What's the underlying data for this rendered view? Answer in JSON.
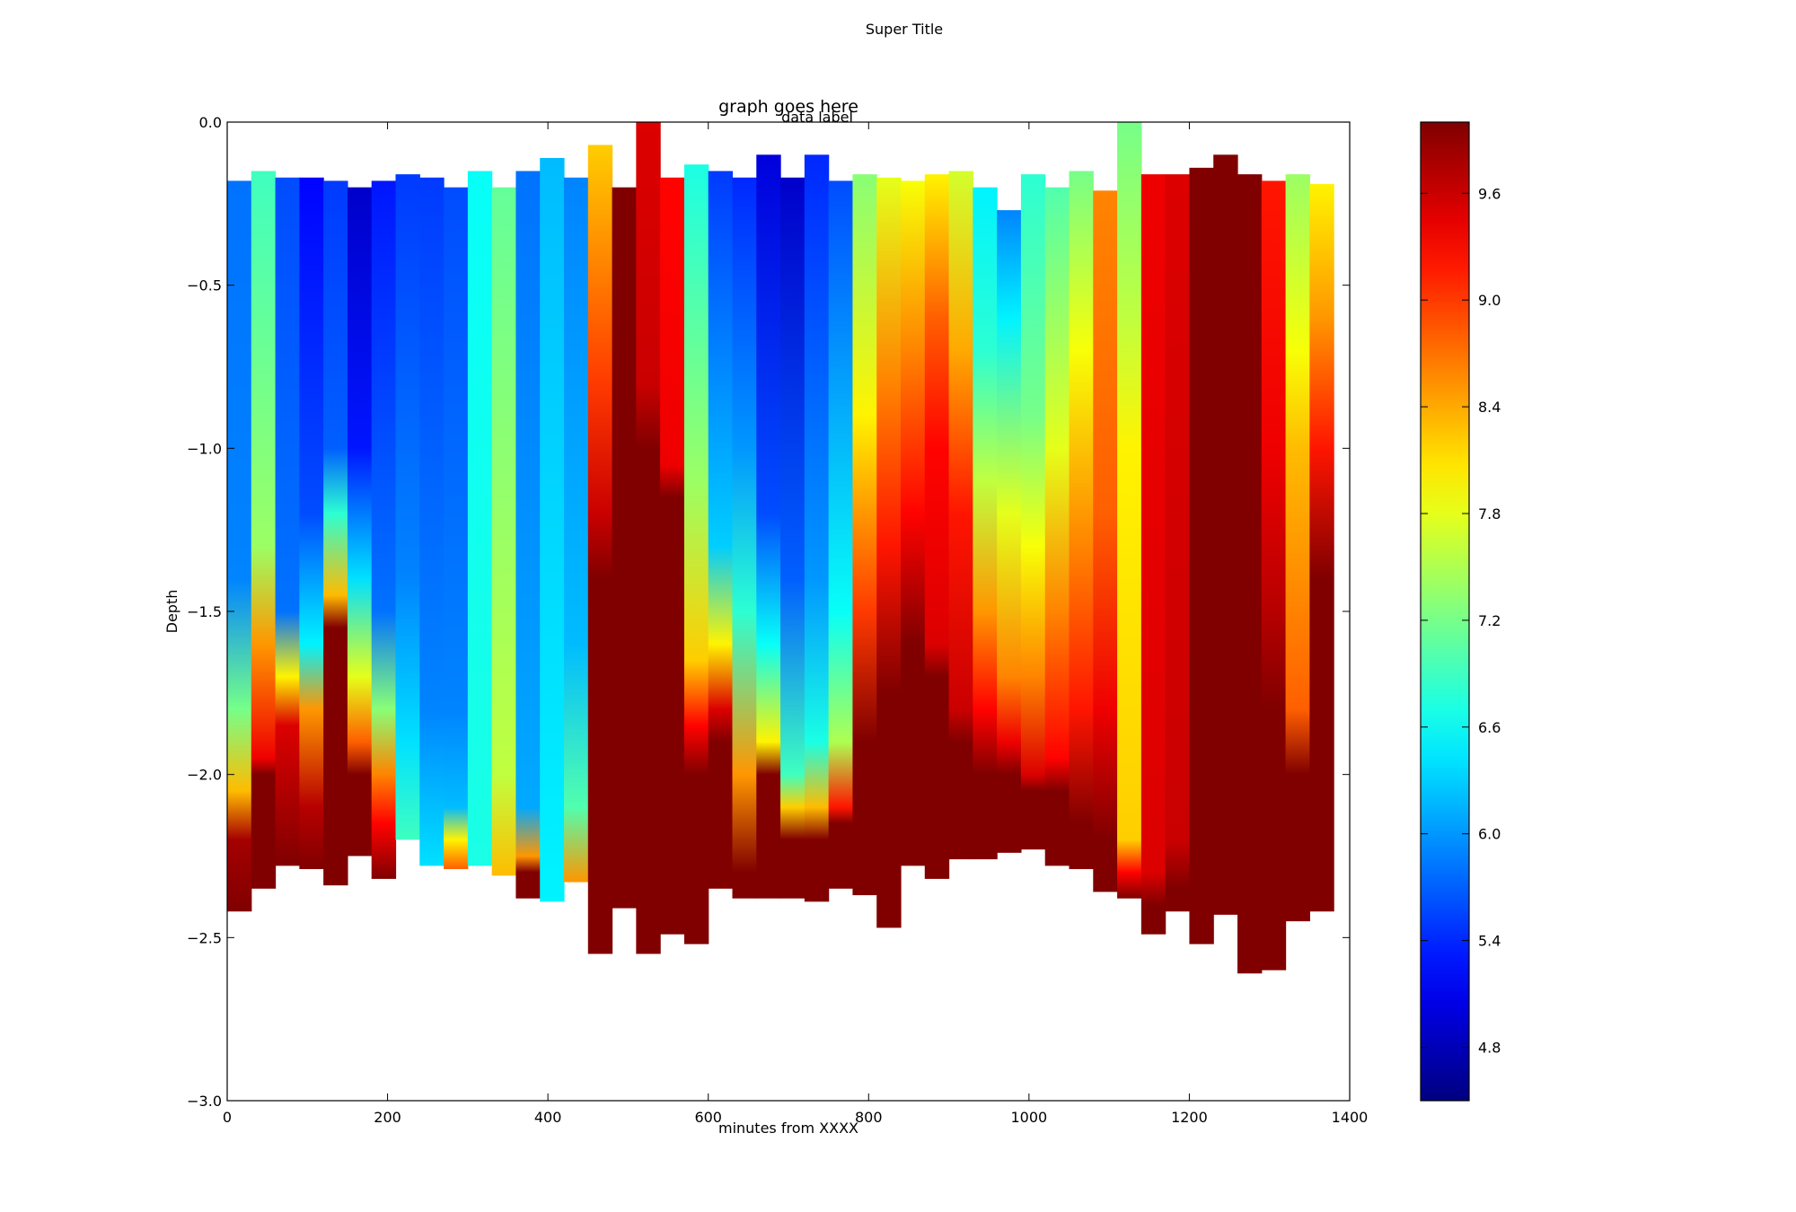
{
  "chart_data": {
    "type": "heatmap",
    "suptitle": "Super Title",
    "title": "graph goes here",
    "annotation": "data label",
    "xlabel": "minutes from XXXX",
    "ylabel": "Depth",
    "xlim": [
      0,
      1400
    ],
    "ylim": [
      -3.0,
      0.0
    ],
    "x_ticks": [
      0,
      200,
      400,
      600,
      800,
      1000,
      1200,
      1400
    ],
    "x_tick_labels": [
      "0",
      "200",
      "400",
      "600",
      "800",
      "1000",
      "1200",
      "1400"
    ],
    "y_ticks": [
      0.0,
      -0.5,
      -1.0,
      -1.5,
      -2.0,
      -2.5,
      -3.0
    ],
    "y_tick_labels": [
      "0.0",
      "−0.5",
      "−1.0",
      "−1.5",
      "−2.0",
      "−2.5",
      "−3.0"
    ],
    "colormap": "jet",
    "colorbar_range": [
      4.5,
      10.0
    ],
    "colorbar_ticks": [
      4.8,
      5.4,
      6.0,
      6.6,
      7.2,
      7.8,
      8.4,
      9.0,
      9.6
    ],
    "colorbar_tick_labels": [
      "4.8",
      "5.4",
      "6.0",
      "6.6",
      "7.2",
      "7.8",
      "8.4",
      "9.0",
      "9.6"
    ],
    "profile_width": 30,
    "profiles": [
      {
        "x": 0,
        "top": -0.18,
        "bottom": -2.42,
        "stops": [
          [
            -0.18,
            5.8
          ],
          [
            -1.4,
            5.9
          ],
          [
            -1.8,
            7.2
          ],
          [
            -2.05,
            8.3
          ],
          [
            -2.2,
            9.8
          ],
          [
            -2.42,
            10.0
          ]
        ]
      },
      {
        "x": 30,
        "top": -0.15,
        "bottom": -2.35,
        "stops": [
          [
            -0.15,
            6.9
          ],
          [
            -1.3,
            7.4
          ],
          [
            -1.6,
            8.5
          ],
          [
            -1.95,
            9.4
          ],
          [
            -2.0,
            10.0
          ],
          [
            -2.35,
            10.0
          ]
        ]
      },
      {
        "x": 60,
        "top": -0.17,
        "bottom": -2.28,
        "stops": [
          [
            -0.17,
            5.6
          ],
          [
            -1.5,
            5.8
          ],
          [
            -1.7,
            8.0
          ],
          [
            -1.85,
            9.5
          ],
          [
            -2.28,
            10.0
          ]
        ]
      },
      {
        "x": 90,
        "top": -0.17,
        "bottom": -2.29,
        "stops": [
          [
            -0.17,
            5.2
          ],
          [
            -1.2,
            5.6
          ],
          [
            -1.6,
            6.5
          ],
          [
            -1.8,
            8.5
          ],
          [
            -2.1,
            9.7
          ],
          [
            -2.29,
            10.0
          ]
        ]
      },
      {
        "x": 120,
        "top": -0.18,
        "bottom": -2.34,
        "stops": [
          [
            -0.18,
            5.5
          ],
          [
            -1.0,
            5.7
          ],
          [
            -1.2,
            6.8
          ],
          [
            -1.45,
            8.3
          ],
          [
            -1.55,
            10.0
          ],
          [
            -2.34,
            10.0
          ]
        ]
      },
      {
        "x": 150,
        "top": -0.2,
        "bottom": -2.25,
        "stops": [
          [
            -0.2,
            4.9
          ],
          [
            -1.0,
            5.3
          ],
          [
            -1.4,
            6.4
          ],
          [
            -1.7,
            7.8
          ],
          [
            -1.9,
            8.8
          ],
          [
            -2.0,
            10.0
          ],
          [
            -2.25,
            10.0
          ]
        ]
      },
      {
        "x": 180,
        "top": -0.18,
        "bottom": -2.32,
        "stops": [
          [
            -0.18,
            5.3
          ],
          [
            -1.5,
            5.8
          ],
          [
            -1.8,
            7.3
          ],
          [
            -2.0,
            8.6
          ],
          [
            -2.15,
            9.3
          ],
          [
            -2.32,
            10.0
          ]
        ]
      },
      {
        "x": 210,
        "top": -0.16,
        "bottom": -2.2,
        "stops": [
          [
            -0.16,
            5.5
          ],
          [
            -1.4,
            5.9
          ],
          [
            -1.9,
            6.4
          ],
          [
            -2.2,
            6.9
          ]
        ]
      },
      {
        "x": 240,
        "top": -0.17,
        "bottom": -2.28,
        "stops": [
          [
            -0.17,
            5.5
          ],
          [
            -1.8,
            5.9
          ],
          [
            -2.28,
            6.4
          ]
        ]
      },
      {
        "x": 270,
        "top": -0.2,
        "bottom": -2.29,
        "stops": [
          [
            -0.2,
            5.6
          ],
          [
            -1.8,
            5.9
          ],
          [
            -2.1,
            6.2
          ],
          [
            -2.2,
            8.0
          ],
          [
            -2.29,
            8.8
          ]
        ]
      },
      {
        "x": 300,
        "top": -0.15,
        "bottom": -2.28,
        "stops": [
          [
            -0.15,
            6.6
          ],
          [
            -2.28,
            6.7
          ]
        ]
      },
      {
        "x": 330,
        "top": -0.2,
        "bottom": -2.31,
        "stops": [
          [
            -0.2,
            7.1
          ],
          [
            -2.0,
            7.6
          ],
          [
            -2.31,
            8.3
          ]
        ]
      },
      {
        "x": 360,
        "top": -0.15,
        "bottom": -2.38,
        "stops": [
          [
            -0.15,
            5.8
          ],
          [
            -2.1,
            6.1
          ],
          [
            -2.25,
            8.5
          ],
          [
            -2.3,
            10.0
          ],
          [
            -2.38,
            10.0
          ]
        ]
      },
      {
        "x": 390,
        "top": -0.11,
        "bottom": -2.39,
        "stops": [
          [
            -0.11,
            6.2
          ],
          [
            -2.39,
            6.5
          ]
        ]
      },
      {
        "x": 420,
        "top": -0.17,
        "bottom": -2.33,
        "stops": [
          [
            -0.17,
            5.9
          ],
          [
            -1.6,
            6.2
          ],
          [
            -2.1,
            7.0
          ],
          [
            -2.33,
            8.5
          ]
        ]
      },
      {
        "x": 450,
        "top": -0.07,
        "bottom": -2.55,
        "stops": [
          [
            -0.07,
            8.2
          ],
          [
            -0.8,
            9.0
          ],
          [
            -1.2,
            9.6
          ],
          [
            -1.4,
            10.0
          ],
          [
            -2.55,
            10.0
          ]
        ]
      },
      {
        "x": 480,
        "top": -0.2,
        "bottom": -2.41,
        "stops": [
          [
            -0.2,
            10.0
          ],
          [
            -2.41,
            10.0
          ]
        ]
      },
      {
        "x": 510,
        "top": 0.0,
        "bottom": -2.55,
        "stops": [
          [
            0.0,
            9.5
          ],
          [
            -0.8,
            9.6
          ],
          [
            -1.0,
            10.0
          ],
          [
            -2.55,
            10.0
          ]
        ]
      },
      {
        "x": 540,
        "top": -0.17,
        "bottom": -2.49,
        "stops": [
          [
            -0.17,
            9.3
          ],
          [
            -1.05,
            9.4
          ],
          [
            -1.15,
            10.0
          ],
          [
            -2.49,
            10.0
          ]
        ]
      },
      {
        "x": 570,
        "top": -0.13,
        "bottom": -2.52,
        "stops": [
          [
            -0.13,
            6.7
          ],
          [
            -1.1,
            7.4
          ],
          [
            -1.65,
            8.2
          ],
          [
            -1.85,
            9.3
          ],
          [
            -2.0,
            10.0
          ],
          [
            -2.52,
            10.0
          ]
        ]
      },
      {
        "x": 600,
        "top": -0.15,
        "bottom": -2.35,
        "stops": [
          [
            -0.15,
            5.5
          ],
          [
            -1.3,
            6.3
          ],
          [
            -1.6,
            8.0
          ],
          [
            -1.8,
            9.5
          ],
          [
            -1.9,
            10.0
          ],
          [
            -2.35,
            10.0
          ]
        ]
      },
      {
        "x": 630,
        "top": -0.17,
        "bottom": -2.38,
        "stops": [
          [
            -0.17,
            5.4
          ],
          [
            -1.0,
            6.0
          ],
          [
            -1.5,
            6.8
          ],
          [
            -2.0,
            8.5
          ],
          [
            -2.3,
            10.0
          ],
          [
            -2.38,
            10.0
          ]
        ]
      },
      {
        "x": 660,
        "top": -0.1,
        "bottom": -2.38,
        "stops": [
          [
            -0.1,
            5.0
          ],
          [
            -1.2,
            5.6
          ],
          [
            -1.6,
            6.6
          ],
          [
            -1.9,
            8.0
          ],
          [
            -2.0,
            10.0
          ],
          [
            -2.38,
            10.0
          ]
        ]
      },
      {
        "x": 690,
        "top": -0.17,
        "bottom": -2.38,
        "stops": [
          [
            -0.17,
            4.9
          ],
          [
            -1.4,
            5.7
          ],
          [
            -2.0,
            6.9
          ],
          [
            -2.1,
            8.2
          ],
          [
            -2.2,
            10.0
          ],
          [
            -2.38,
            10.0
          ]
        ]
      },
      {
        "x": 720,
        "top": -0.1,
        "bottom": -2.39,
        "stops": [
          [
            -0.1,
            5.4
          ],
          [
            -1.4,
            6.0
          ],
          [
            -1.9,
            6.7
          ],
          [
            -2.1,
            8.3
          ],
          [
            -2.2,
            10.0
          ],
          [
            -2.39,
            10.0
          ]
        ]
      },
      {
        "x": 750,
        "top": -0.18,
        "bottom": -2.35,
        "stops": [
          [
            -0.18,
            5.6
          ],
          [
            -1.5,
            6.6
          ],
          [
            -1.9,
            7.5
          ],
          [
            -2.1,
            9.2
          ],
          [
            -2.15,
            10.0
          ],
          [
            -2.35,
            10.0
          ]
        ]
      },
      {
        "x": 780,
        "top": -0.16,
        "bottom": -2.37,
        "stops": [
          [
            -0.16,
            7.3
          ],
          [
            -0.9,
            8.0
          ],
          [
            -1.5,
            9.0
          ],
          [
            -1.9,
            10.0
          ],
          [
            -2.37,
            10.0
          ]
        ]
      },
      {
        "x": 810,
        "top": -0.17,
        "bottom": -2.47,
        "stops": [
          [
            -0.17,
            7.8
          ],
          [
            -0.8,
            8.6
          ],
          [
            -1.3,
            9.2
          ],
          [
            -1.75,
            10.0
          ],
          [
            -2.47,
            10.0
          ]
        ]
      },
      {
        "x": 840,
        "top": -0.18,
        "bottom": -2.28,
        "stops": [
          [
            -0.18,
            7.9
          ],
          [
            -0.7,
            8.6
          ],
          [
            -1.2,
            9.3
          ],
          [
            -1.6,
            10.0
          ],
          [
            -2.28,
            10.0
          ]
        ]
      },
      {
        "x": 870,
        "top": -0.16,
        "bottom": -2.32,
        "stops": [
          [
            -0.16,
            8.0
          ],
          [
            -0.6,
            8.8
          ],
          [
            -1.0,
            9.3
          ],
          [
            -1.6,
            9.5
          ],
          [
            -1.7,
            10.0
          ],
          [
            -2.32,
            10.0
          ]
        ]
      },
      {
        "x": 900,
        "top": -0.15,
        "bottom": -2.26,
        "stops": [
          [
            -0.15,
            7.7
          ],
          [
            -0.7,
            8.4
          ],
          [
            -1.2,
            9.2
          ],
          [
            -1.8,
            9.6
          ],
          [
            -1.9,
            10.0
          ],
          [
            -2.26,
            10.0
          ]
        ]
      },
      {
        "x": 930,
        "top": -0.2,
        "bottom": -2.26,
        "stops": [
          [
            -0.2,
            6.5
          ],
          [
            -0.7,
            6.8
          ],
          [
            -1.1,
            7.6
          ],
          [
            -1.5,
            8.5
          ],
          [
            -1.8,
            9.3
          ],
          [
            -2.0,
            10.0
          ],
          [
            -2.26,
            10.0
          ]
        ]
      },
      {
        "x": 960,
        "top": -0.27,
        "bottom": -2.24,
        "stops": [
          [
            -0.27,
            5.9
          ],
          [
            -0.6,
            6.5
          ],
          [
            -1.2,
            7.8
          ],
          [
            -1.7,
            8.6
          ],
          [
            -1.9,
            9.4
          ],
          [
            -2.0,
            10.0
          ],
          [
            -2.24,
            10.0
          ]
        ]
      },
      {
        "x": 990,
        "top": -0.16,
        "bottom": -2.23,
        "stops": [
          [
            -0.16,
            6.8
          ],
          [
            -0.9,
            7.2
          ],
          [
            -1.3,
            7.9
          ],
          [
            -1.7,
            8.6
          ],
          [
            -2.0,
            9.5
          ],
          [
            -2.05,
            10.0
          ],
          [
            -2.23,
            10.0
          ]
        ]
      },
      {
        "x": 1020,
        "top": -0.2,
        "bottom": -2.28,
        "stops": [
          [
            -0.2,
            7.0
          ],
          [
            -1.0,
            7.8
          ],
          [
            -1.5,
            8.6
          ],
          [
            -1.95,
            9.3
          ],
          [
            -2.05,
            10.0
          ],
          [
            -2.28,
            10.0
          ]
        ]
      },
      {
        "x": 1050,
        "top": -0.15,
        "bottom": -2.29,
        "stops": [
          [
            -0.15,
            7.2
          ],
          [
            -0.7,
            7.9
          ],
          [
            -1.3,
            8.6
          ],
          [
            -1.8,
            9.2
          ],
          [
            -2.15,
            10.0
          ],
          [
            -2.29,
            10.0
          ]
        ]
      },
      {
        "x": 1080,
        "top": -0.21,
        "bottom": -2.36,
        "stops": [
          [
            -0.21,
            8.6
          ],
          [
            -1.2,
            8.8
          ],
          [
            -1.8,
            9.4
          ],
          [
            -2.2,
            10.0
          ],
          [
            -2.36,
            10.0
          ]
        ]
      },
      {
        "x": 1110,
        "top": 0.0,
        "bottom": -2.38,
        "stops": [
          [
            0.0,
            7.2
          ],
          [
            -0.6,
            7.6
          ],
          [
            -1.0,
            8.0
          ],
          [
            -2.2,
            8.2
          ],
          [
            -2.3,
            9.3
          ],
          [
            -2.38,
            10.0
          ]
        ]
      },
      {
        "x": 1140,
        "top": -0.16,
        "bottom": -2.49,
        "stops": [
          [
            -0.16,
            9.4
          ],
          [
            -2.3,
            9.5
          ],
          [
            -2.4,
            10.0
          ],
          [
            -2.49,
            10.0
          ]
        ]
      },
      {
        "x": 1170,
        "top": -0.16,
        "bottom": -2.42,
        "stops": [
          [
            -0.16,
            9.5
          ],
          [
            -2.2,
            9.6
          ],
          [
            -2.35,
            10.0
          ],
          [
            -2.42,
            10.0
          ]
        ]
      },
      {
        "x": 1200,
        "top": -0.14,
        "bottom": -2.52,
        "stops": [
          [
            -0.14,
            10.0
          ],
          [
            -2.52,
            10.0
          ]
        ]
      },
      {
        "x": 1230,
        "top": -0.1,
        "bottom": -2.43,
        "stops": [
          [
            -0.1,
            10.0
          ],
          [
            -2.43,
            10.0
          ]
        ]
      },
      {
        "x": 1260,
        "top": -0.16,
        "bottom": -2.61,
        "stops": [
          [
            -0.16,
            10.0
          ],
          [
            -2.61,
            10.0
          ]
        ]
      },
      {
        "x": 1290,
        "top": -0.18,
        "bottom": -2.6,
        "stops": [
          [
            -0.18,
            9.2
          ],
          [
            -1.0,
            9.4
          ],
          [
            -1.5,
            9.7
          ],
          [
            -1.8,
            10.0
          ],
          [
            -2.6,
            10.0
          ]
        ]
      },
      {
        "x": 1320,
        "top": -0.16,
        "bottom": -2.45,
        "stops": [
          [
            -0.16,
            7.4
          ],
          [
            -0.7,
            7.9
          ],
          [
            -1.0,
            8.3
          ],
          [
            -1.8,
            8.8
          ],
          [
            -2.0,
            10.0
          ],
          [
            -2.45,
            10.0
          ]
        ]
      },
      {
        "x": 1350,
        "top": -0.19,
        "bottom": -2.42,
        "stops": [
          [
            -0.19,
            8.0
          ],
          [
            -0.6,
            8.5
          ],
          [
            -1.0,
            9.2
          ],
          [
            -1.4,
            10.0
          ],
          [
            -2.42,
            10.0
          ]
        ]
      }
    ]
  }
}
